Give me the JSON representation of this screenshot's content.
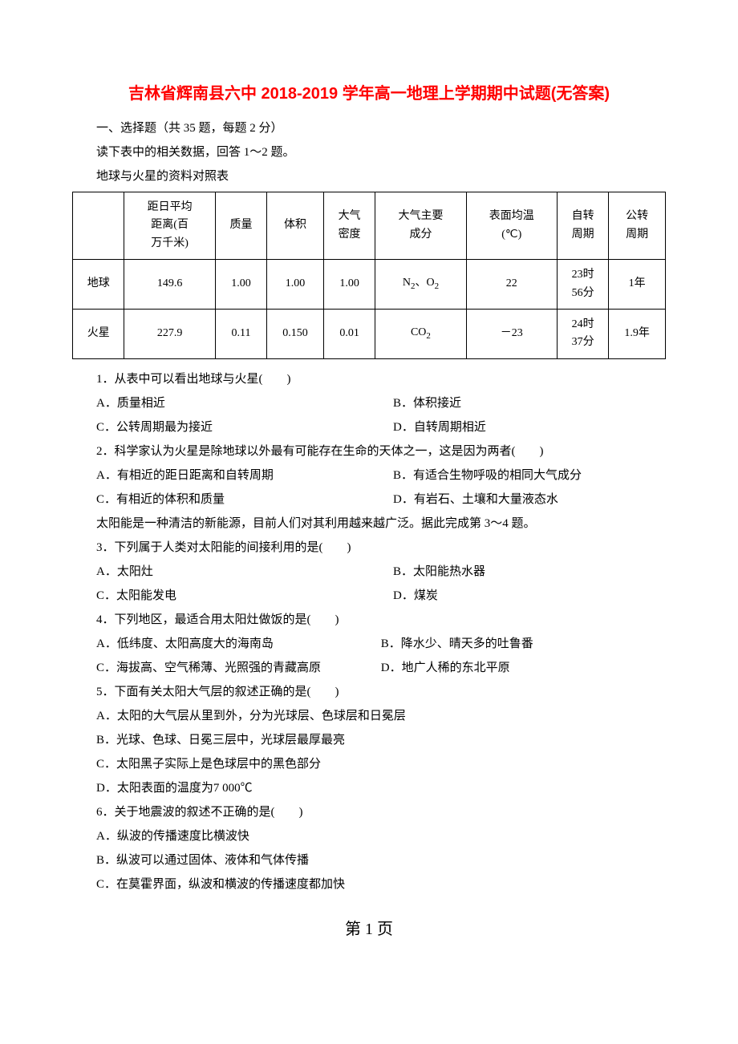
{
  "title": "吉林省辉南县六中 2018-2019 学年高一地理上学期期中试题(无答案)",
  "intro": {
    "line1": "一、选择题（共 35 题，每题 2 分）",
    "line2": "读下表中的相关数据，回答 1～2 题。",
    "line3": "地球与火星的资料对照表"
  },
  "table": {
    "columns": [
      "",
      "距日平均距离(百万千米)",
      "质量",
      "体积",
      "大气密度",
      "大气主要成分",
      "表面均温(℃)",
      "自转周期",
      "公转周期"
    ],
    "rows": [
      [
        "地球",
        "149.6",
        "1.00",
        "1.00",
        "1.00",
        "N₂、O₂",
        "22",
        "23时56分",
        "1年"
      ],
      [
        "火星",
        "227.9",
        "0.11",
        "0.150",
        "0.01",
        "CO₂",
        "－23",
        "24时37分",
        "1.9年"
      ]
    ],
    "border_color": "#000000",
    "background_color": "#ffffff",
    "text_color": "#000000",
    "fontsize": 14
  },
  "questions": {
    "q1": {
      "stem": "1．从表中可以看出地球与火星(　　)",
      "A": "A．质量相近",
      "B": "B．体积接近",
      "C": "C．公转周期最为接近",
      "D": "D．自转周期相近"
    },
    "q2": {
      "stem": "2．科学家认为火星是除地球以外最有可能存在生命的天体之一，这是因为两者(　　)",
      "A": "A．有相近的距日距离和自转周期",
      "B": "B．有适合生物呼吸的相同大气成分",
      "C": "C．有相近的体积和质量",
      "D": "D．有岩石、土壤和大量液态水"
    },
    "q3_intro": "太阳能是一种清洁的新能源，目前人们对其利用越来越广泛。据此完成第 3～4 题。",
    "q3": {
      "stem": "3．下列属于人类对太阳能的间接利用的是(　　)",
      "A": "A．太阳灶",
      "B": "B．太阳能热水器",
      "C": "C．太阳能发电",
      "D": "D．煤炭"
    },
    "q4": {
      "stem": "4．下列地区，最适合用太阳灶做饭的是(　　)",
      "A": "A．低纬度、太阳高度大的海南岛",
      "B": "B．降水少、晴天多的吐鲁番",
      "C": "C．海拔高、空气稀薄、光照强的青藏高原",
      "D": "D．地广人稀的东北平原"
    },
    "q5": {
      "stem": "5．下面有关太阳大气层的叙述正确的是(　　)",
      "A": "A．太阳的大气层从里到外，分为光球层、色球层和日冕层",
      "B": "B．光球、色球、日冕三层中，光球层最厚最亮",
      "C": "C．太阳黑子实际上是色球层中的黑色部分",
      "D": "D．太阳表面的温度为7 000℃"
    },
    "q6": {
      "stem": "6．关于地震波的叙述不正确的是(　　)",
      "A": "A．纵波的传播速度比横波快",
      "B": "B．纵波可以通过固体、液体和气体传播",
      "C": "C．在莫霍界面，纵波和横波的传播速度都加快"
    }
  },
  "footer": "第 1 页",
  "colors": {
    "title_color": "#ff0000",
    "text_color": "#000000",
    "background_color": "#ffffff"
  },
  "typography": {
    "title_fontsize": 20,
    "body_fontsize": 15,
    "footer_fontsize": 20,
    "title_font": "SimHei",
    "body_font": "SimSun"
  }
}
